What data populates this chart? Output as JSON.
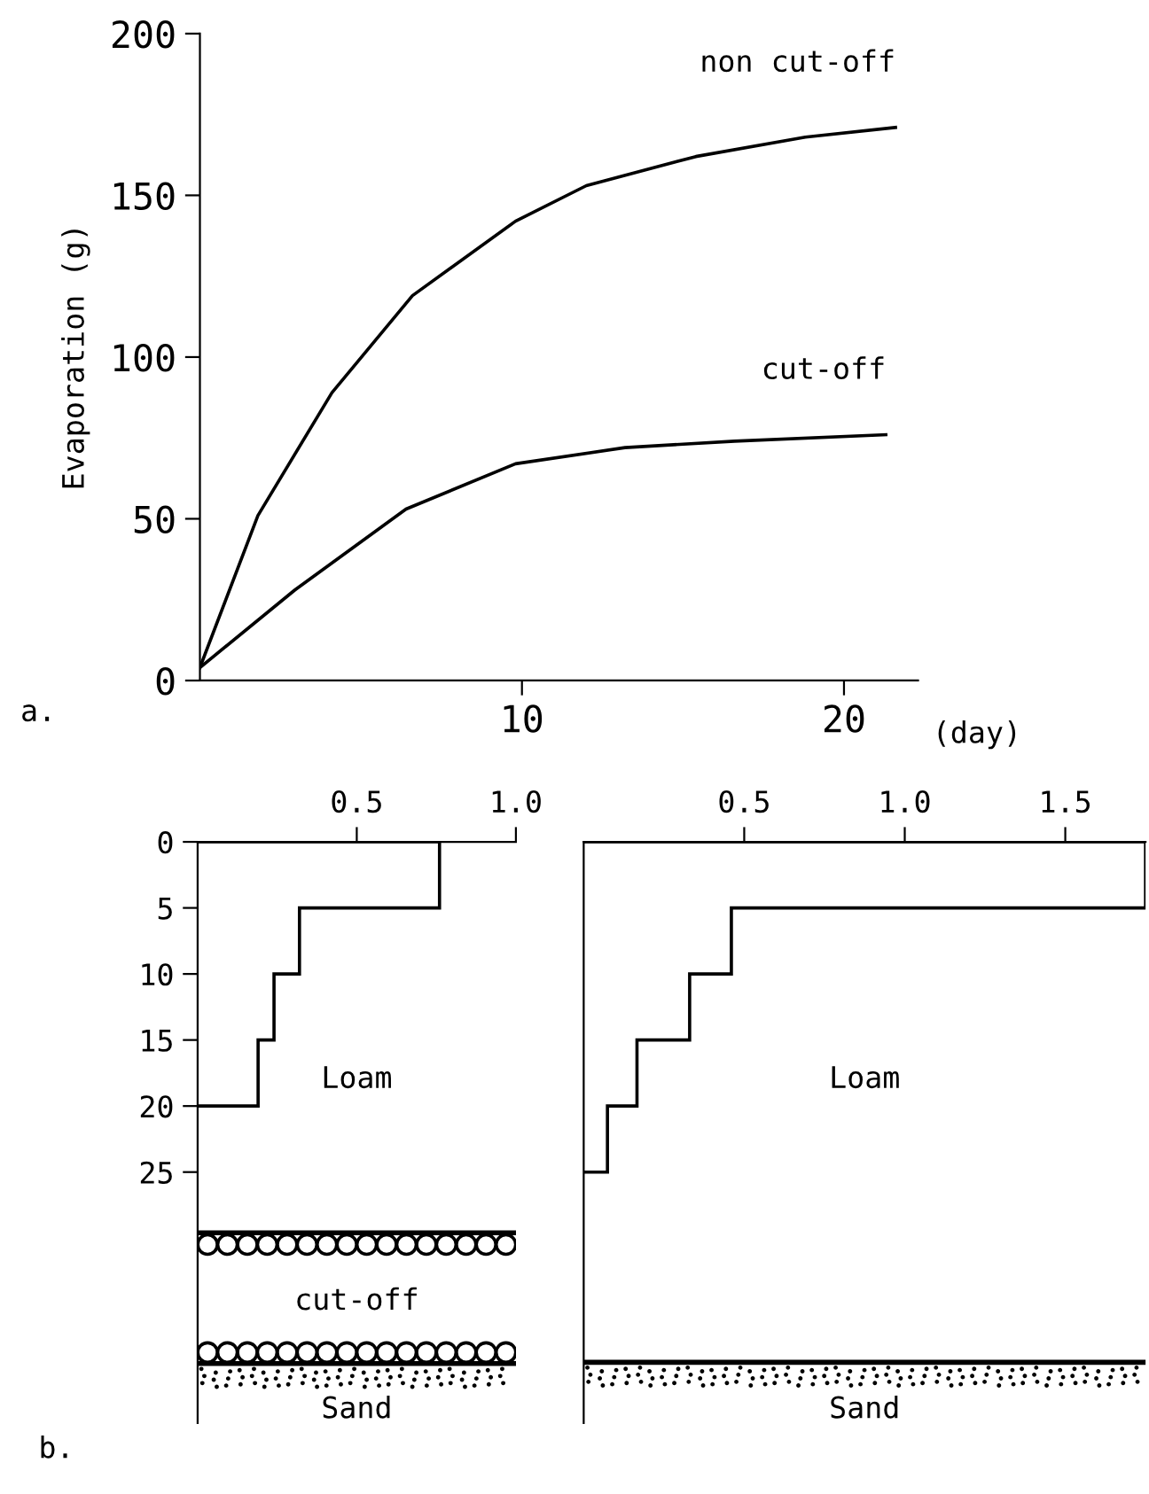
{
  "chart_data": [
    {
      "type": "line",
      "ylabel": "Evaporation (g)",
      "xlabel": "(day)",
      "xlim": [
        0,
        22.3
      ],
      "ylim": [
        0,
        200
      ],
      "xticks": [
        10,
        20
      ],
      "yticks": [
        0,
        50,
        100,
        150,
        200
      ],
      "grid": false,
      "legend": false,
      "marker": "none",
      "line_style": "solid",
      "series": [
        {
          "name": "non cut-off",
          "color": "#000000",
          "x": [
            0,
            1.8,
            4.1,
            6.6,
            9.8,
            12.0,
            15.4,
            18.8,
            21.6
          ],
          "values": [
            4,
            51,
            89,
            119,
            142,
            153,
            162,
            168,
            171
          ]
        },
        {
          "name": "cut-off",
          "color": "#000000",
          "x": [
            0,
            2.95,
            6.4,
            9.8,
            13.2,
            16.6,
            21.3
          ],
          "values": [
            4,
            28,
            53,
            67,
            72,
            74,
            76
          ]
        }
      ],
      "annotations": [
        "a."
      ]
    },
    {
      "type": "histogram",
      "orientation": "horizontal",
      "bins": [
        0,
        5,
        10,
        15,
        20
      ],
      "values": [
        0.76,
        0.32,
        0.24,
        0.19
      ],
      "color": "#000000",
      "xlim": [
        0,
        1.0
      ],
      "xticks": [
        0.5,
        {
          "value": 1.0,
          "label": "1.0"
        }
      ],
      "ylim": [
        44,
        0
      ],
      "yticks": [
        0,
        5,
        10,
        15,
        20,
        25
      ],
      "grid": false,
      "ref_lines": [
        {
          "axis": "y",
          "value": 29.6,
          "color": "#000000"
        },
        {
          "axis": "y",
          "value": 39.5,
          "color": "#000000"
        }
      ],
      "annotations": [
        "Loam",
        "cut-off",
        "Sand",
        "b."
      ]
    },
    {
      "type": "histogram",
      "orientation": "horizontal",
      "bins": [
        0,
        5,
        10,
        15,
        20,
        25
      ],
      "values": [
        1.75,
        0.46,
        0.33,
        0.166,
        0.074
      ],
      "color": "#000000",
      "xlim": [
        0,
        1.75
      ],
      "xticks": [
        0.5,
        {
          "value": 1.0,
          "label": "1.0"
        },
        1.5
      ],
      "ylim": [
        44,
        0
      ],
      "tick_labels": "x",
      "grid": false,
      "ref_lines": [
        {
          "axis": "y",
          "value": 39.4,
          "color": "#000000"
        }
      ],
      "annotations": [
        "Loam",
        "Sand"
      ]
    }
  ]
}
